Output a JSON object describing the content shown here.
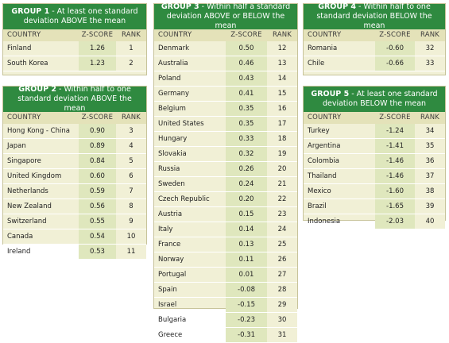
{
  "columns": {
    "country": "COUNTRY",
    "zscore": "Z-SCORE",
    "rank": "RANK"
  },
  "groups": [
    {
      "label": "GROUP 1",
      "desc": " - At least one standard deviation ABOVE the mean",
      "rows": [
        {
          "country": "Finland",
          "z": "1.26",
          "rank": "1"
        },
        {
          "country": "South Korea",
          "z": "1.23",
          "rank": "2"
        }
      ]
    },
    {
      "label": "GROUP 2",
      "desc": " - Within half to one standard deviation ABOVE the mean",
      "rows": [
        {
          "country": "Hong Kong - China",
          "z": "0.90",
          "rank": "3"
        },
        {
          "country": "Japan",
          "z": "0.89",
          "rank": "4"
        },
        {
          "country": "Singapore",
          "z": "0.84",
          "rank": "5"
        },
        {
          "country": "United Kingdom",
          "z": "0.60",
          "rank": "6"
        },
        {
          "country": "Netherlands",
          "z": "0.59",
          "rank": "7"
        },
        {
          "country": "New Zealand",
          "z": "0.56",
          "rank": "8"
        },
        {
          "country": "Switzerland",
          "z": "0.55",
          "rank": "9"
        },
        {
          "country": "Canada",
          "z": "0.54",
          "rank": "10"
        },
        {
          "country": "Ireland",
          "z": "0.53",
          "rank": "11"
        }
      ]
    },
    {
      "label": "GROUP 3",
      "desc": " - Within half a standard deviation ABOVE or BELOW the mean",
      "rows": [
        {
          "country": "Denmark",
          "z": "0.50",
          "rank": "12"
        },
        {
          "country": "Australia",
          "z": "0.46",
          "rank": "13"
        },
        {
          "country": "Poland",
          "z": "0.43",
          "rank": "14"
        },
        {
          "country": "Germany",
          "z": "0.41",
          "rank": "15"
        },
        {
          "country": "Belgium",
          "z": "0.35",
          "rank": "16"
        },
        {
          "country": "United States",
          "z": "0.35",
          "rank": "17"
        },
        {
          "country": "Hungary",
          "z": "0.33",
          "rank": "18"
        },
        {
          "country": "Slovakia",
          "z": "0.32",
          "rank": "19"
        },
        {
          "country": "Russia",
          "z": "0.26",
          "rank": "20"
        },
        {
          "country": "Sweden",
          "z": "0.24",
          "rank": "21"
        },
        {
          "country": "Czech Republic",
          "z": "0.20",
          "rank": "22"
        },
        {
          "country": "Austria",
          "z": "0.15",
          "rank": "23"
        },
        {
          "country": "Italy",
          "z": "0.14",
          "rank": "24"
        },
        {
          "country": "France",
          "z": "0.13",
          "rank": "25"
        },
        {
          "country": "Norway",
          "z": "0.11",
          "rank": "26"
        },
        {
          "country": "Portugal",
          "z": "0.01",
          "rank": "27"
        },
        {
          "country": "Spain",
          "z": "-0.08",
          "rank": "28"
        },
        {
          "country": "Israel",
          "z": "-0.15",
          "rank": "29"
        },
        {
          "country": "Bulgaria",
          "z": "-0.23",
          "rank": "30"
        },
        {
          "country": "Greece",
          "z": "-0.31",
          "rank": "31"
        }
      ]
    },
    {
      "label": "GROUP 4",
      "desc": " - Within half to one standard deviation BELOW the mean",
      "rows": [
        {
          "country": "Romania",
          "z": "-0.60",
          "rank": "32"
        },
        {
          "country": "Chile",
          "z": "-0.66",
          "rank": "33"
        }
      ]
    },
    {
      "label": "GROUP 5",
      "desc": " - At least one standard deviation BELOW the mean",
      "rows": [
        {
          "country": "Turkey",
          "z": "-1.24",
          "rank": "34"
        },
        {
          "country": "Argentina",
          "z": "-1.41",
          "rank": "35"
        },
        {
          "country": "Colombia",
          "z": "-1.46",
          "rank": "36"
        },
        {
          "country": "Thailand",
          "z": "-1.46",
          "rank": "37"
        },
        {
          "country": "Mexico",
          "z": "-1.60",
          "rank": "38"
        },
        {
          "country": "Brazil",
          "z": "-1.65",
          "rank": "39"
        },
        {
          "country": "Indonesia",
          "z": "-2.03",
          "rank": "40"
        }
      ]
    }
  ]
}
